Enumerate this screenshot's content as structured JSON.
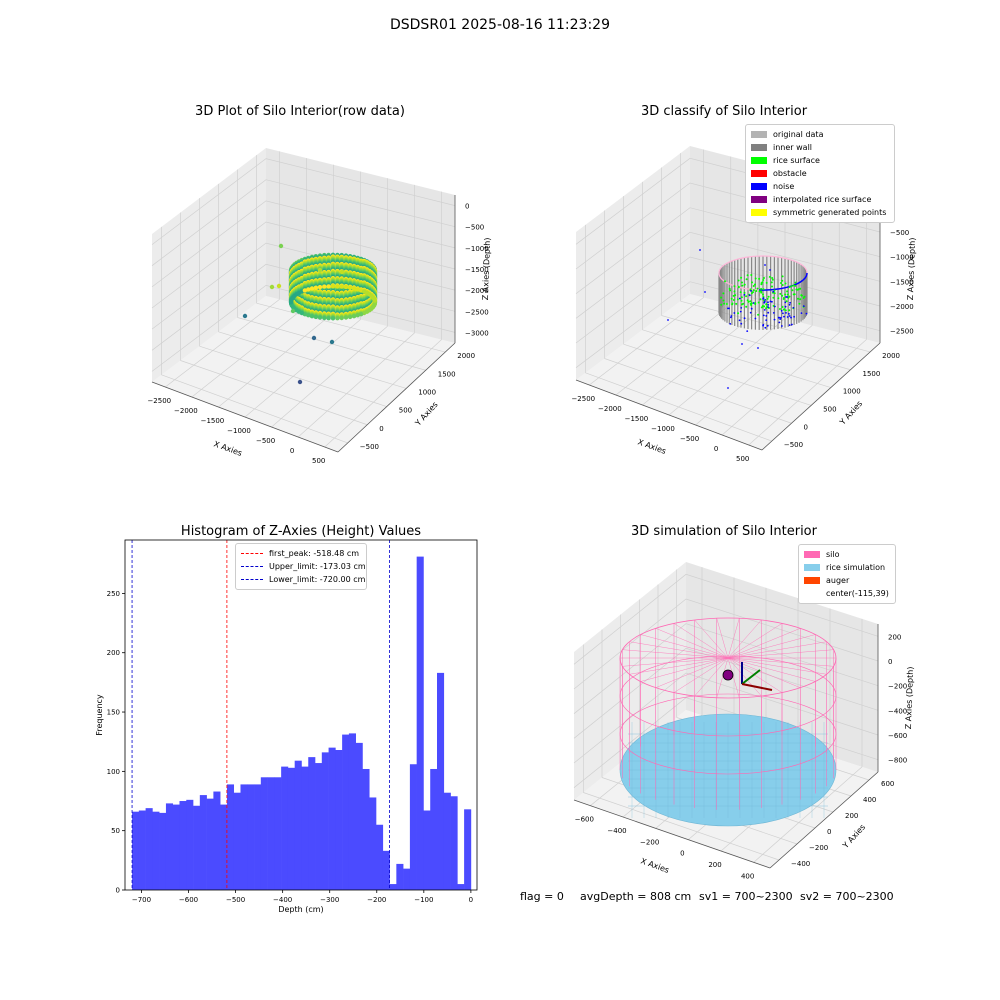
{
  "suptitle": "DSDSR01 2025-08-16 11:23:29",
  "colors": {
    "histogram_bar": "#4b4bff",
    "first_peak": "#ff0000",
    "limit": "#0000cc",
    "pane": "#f2f2f2",
    "silo": "#ff69b4",
    "rice": "#87ceeb",
    "auger": "#ff4500"
  },
  "footer": {
    "flag": "flag = 0",
    "avg_depth": "avgDepth = 808 cm",
    "sv1": "sv1 = 700~2300",
    "sv2": "sv2 = 700~2300"
  },
  "chart_data": [
    {
      "type": "scatter",
      "title": "3D Plot of Silo Interior(row data)",
      "xlabel": "X Axies",
      "ylabel": "Y Axies",
      "zlabel": "Z Axies (Depth)",
      "x_ticks": [
        "−2500",
        "−2000",
        "−1500",
        "−1000",
        "−500",
        "0",
        "500"
      ],
      "y_ticks": [
        "−500",
        "0",
        "500",
        "1000",
        "1500",
        "2000"
      ],
      "z_ticks": [
        "0",
        "−500",
        "−1000",
        "−1500",
        "−2000",
        "−2500",
        "−3000"
      ],
      "xlim": [
        -2700,
        600
      ],
      "ylim": [
        -600,
        2100
      ],
      "zlim": [
        -3100,
        100
      ],
      "colormap": "viridis",
      "grid": true
    },
    {
      "type": "scatter",
      "title": "3D classify of Silo Interior",
      "xlabel": "X Axies",
      "ylabel": "Y Axies",
      "zlabel": "Z Axies (Depth)",
      "x_ticks": [
        "−2500",
        "−2000",
        "−1500",
        "−1000",
        "−500",
        "0",
        "500"
      ],
      "y_ticks": [
        "−500",
        "0",
        "500",
        "1000",
        "1500",
        "2000"
      ],
      "z_ticks": [
        "0",
        "−500",
        "−1000",
        "−1500",
        "−2000",
        "−2500"
      ],
      "legend_position": "top-right",
      "legend": [
        {
          "label": "original data",
          "color": "#b3b3b3"
        },
        {
          "label": "inner wall",
          "color": "#808080"
        },
        {
          "label": "rice surface",
          "color": "#00ff00"
        },
        {
          "label": "obstacle",
          "color": "#ff0000"
        },
        {
          "label": "noise",
          "color": "#0000ff"
        },
        {
          "label": "interpolated rice surface",
          "color": "#800080"
        },
        {
          "label": "symmetric generated points",
          "color": "#ffff00"
        }
      ],
      "grid": true
    },
    {
      "type": "bar",
      "title": "Histogram of Z-Axies (Height) Values",
      "xlabel": "Depth (cm)",
      "ylabel": "Frequency",
      "xlim": [
        -735,
        13
      ],
      "ylim": [
        0,
        295
      ],
      "x_ticks": [
        "−700",
        "−600",
        "−500",
        "−400",
        "−300",
        "−200",
        "−100",
        "0"
      ],
      "y_ticks": [
        "0",
        "50",
        "100",
        "150",
        "200",
        "250"
      ],
      "bin_start": -720,
      "bin_width": 14.4,
      "values": [
        66,
        67,
        69,
        66,
        65,
        73,
        72,
        75,
        76,
        71,
        80,
        77,
        83,
        72,
        89,
        82,
        89,
        89,
        89,
        95,
        95,
        95,
        104,
        103,
        109,
        104,
        112,
        107,
        116,
        120,
        118,
        131,
        132,
        124,
        102,
        78,
        55,
        33,
        5,
        22,
        18,
        106,
        281,
        67,
        102,
        183,
        82,
        79,
        5,
        68
      ],
      "vlines": [
        {
          "label": "first_peak: -518.48 cm",
          "x": -518.48,
          "color": "#ff0000"
        },
        {
          "label": "Upper_limit: -173.03 cm",
          "x": -173.03,
          "color": "#0000cc"
        },
        {
          "label": "Lower_limit: -720.00 cm",
          "x": -720.0,
          "color": "#0000cc"
        }
      ],
      "legend_position": "top-center"
    },
    {
      "type": "surface",
      "title": "3D simulation of Silo Interior",
      "xlabel": "X Axies",
      "ylabel": "Y Axies",
      "zlabel": "Z Axies (Depth)",
      "x_ticks": [
        "−600",
        "−400",
        "−200",
        "0",
        "200",
        "400"
      ],
      "y_ticks": [
        "−400",
        "−200",
        "0",
        "200",
        "400",
        "600"
      ],
      "z_ticks": [
        "200",
        "0",
        "−200",
        "−400",
        "−600",
        "−800"
      ],
      "legend_position": "top-right",
      "legend": [
        {
          "label": "silo",
          "color": "#ff69b4"
        },
        {
          "label": "rice simulation",
          "color": "#87ceeb"
        },
        {
          "label": "auger",
          "color": "#ff4500"
        },
        {
          "label": "center(-115,39)",
          "color": ""
        }
      ],
      "grid": true
    }
  ]
}
